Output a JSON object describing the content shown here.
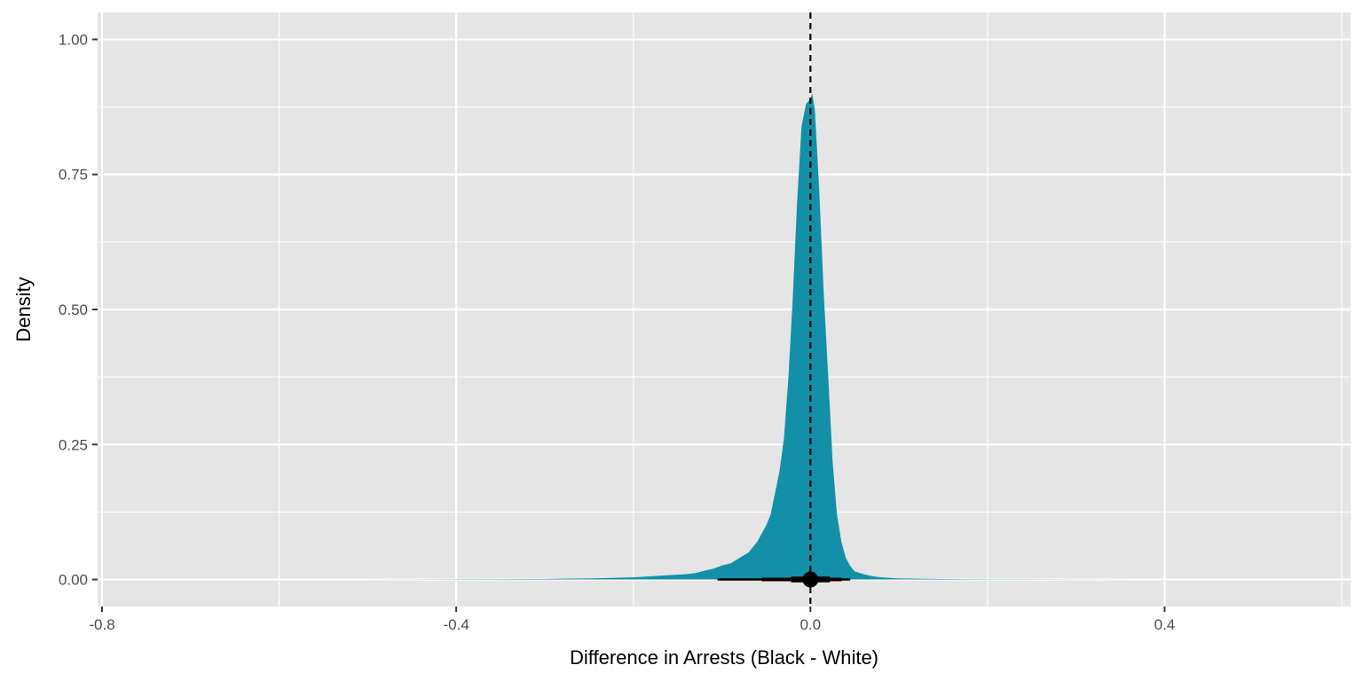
{
  "chart_data": {
    "type": "area",
    "title": "",
    "xlabel": "Difference in Arrests (Black - White)",
    "ylabel": "Density",
    "xlim": [
      -0.805,
      0.61
    ],
    "ylim": [
      -0.05,
      1.05
    ],
    "x_ticks": [
      -0.8,
      -0.4,
      0.0,
      0.4
    ],
    "x_tick_labels": [
      "-0.8",
      "-0.4",
      "0.0",
      "0.4"
    ],
    "y_ticks": [
      0.0,
      0.25,
      0.5,
      0.75,
      1.0
    ],
    "y_tick_labels": [
      "0.00",
      "0.25",
      "0.50",
      "0.75",
      "1.00"
    ],
    "grid": true,
    "legend": "none",
    "colors": {
      "fill": "#1390A8",
      "panel": "#E5E5E5",
      "grid": "#FFFFFF",
      "marks": "#000000"
    },
    "reference_line": {
      "x": 0.0,
      "style": "dashed"
    },
    "density_curve": {
      "x": [
        -0.5,
        -0.3,
        -0.25,
        -0.2,
        -0.18,
        -0.16,
        -0.14,
        -0.13,
        -0.12,
        -0.11,
        -0.1,
        -0.09,
        -0.08,
        -0.07,
        -0.06,
        -0.05,
        -0.045,
        -0.04,
        -0.035,
        -0.03,
        -0.025,
        -0.02,
        -0.015,
        -0.01,
        -0.005,
        0.0,
        0.002,
        0.005,
        0.01,
        0.015,
        0.02,
        0.025,
        0.03,
        0.035,
        0.04,
        0.045,
        0.05,
        0.06,
        0.07,
        0.08,
        0.1,
        0.12,
        0.15,
        0.2,
        0.3,
        0.4
      ],
      "y": [
        0.0,
        0.001,
        0.002,
        0.004,
        0.006,
        0.008,
        0.01,
        0.012,
        0.016,
        0.02,
        0.026,
        0.03,
        0.04,
        0.05,
        0.07,
        0.1,
        0.12,
        0.16,
        0.2,
        0.26,
        0.37,
        0.52,
        0.7,
        0.84,
        0.88,
        0.89,
        0.9,
        0.87,
        0.72,
        0.53,
        0.38,
        0.22,
        0.12,
        0.07,
        0.04,
        0.025,
        0.015,
        0.01,
        0.006,
        0.004,
        0.002,
        0.0015,
        0.001,
        0.0005,
        0.0002,
        0.0
      ]
    },
    "point_interval": {
      "point": 0.0,
      "intervals": [
        [
          -0.105,
          0.045
        ],
        [
          -0.055,
          0.035
        ],
        [
          -0.022,
          0.022
        ]
      ]
    }
  }
}
